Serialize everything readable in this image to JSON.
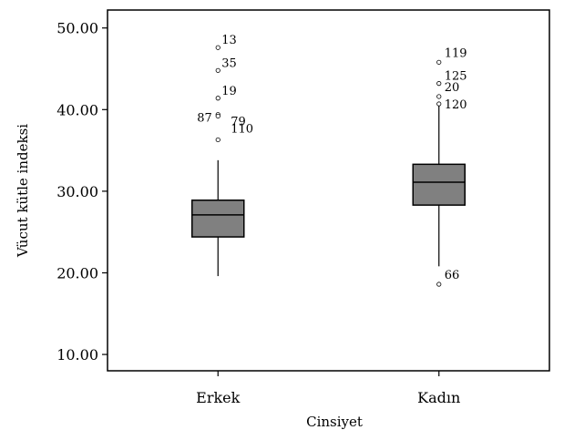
{
  "chart_data": {
    "type": "boxplot",
    "xlabel": "Cinsiyet",
    "ylabel": "Vücut kütle indeksi",
    "ylim": [
      8.0,
      52.2
    ],
    "yticks": [
      10,
      20,
      30,
      40,
      50
    ],
    "ytick_labels": [
      "10.00",
      "20.00",
      "30.00",
      "40.00",
      "50.00"
    ],
    "grid": false,
    "box_color": "#808080",
    "categories": [
      "Erkek",
      "Kadın"
    ],
    "boxes": [
      {
        "category": "Erkek",
        "whisker_low": 19.6,
        "q1": 24.4,
        "median": 27.1,
        "q3": 28.9,
        "whisker_high": 33.8,
        "outliers": [
          {
            "value": 47.6,
            "label": "13"
          },
          {
            "value": 44.8,
            "label": "35"
          },
          {
            "value": 41.4,
            "label": "19"
          },
          {
            "value": 39.4,
            "label": "87"
          },
          {
            "value": 39.2,
            "label": "79"
          },
          {
            "value": 36.3,
            "label": "110"
          }
        ]
      },
      {
        "category": "Kadın",
        "whisker_low": 20.8,
        "q1": 28.3,
        "median": 31.1,
        "q3": 33.3,
        "whisker_high": 40.5,
        "outliers": [
          {
            "value": 45.8,
            "label": "119"
          },
          {
            "value": 43.2,
            "label": "125"
          },
          {
            "value": 41.6,
            "label": "20"
          },
          {
            "value": 40.7,
            "label": "120"
          },
          {
            "value": 18.6,
            "label": "66"
          }
        ]
      }
    ]
  }
}
